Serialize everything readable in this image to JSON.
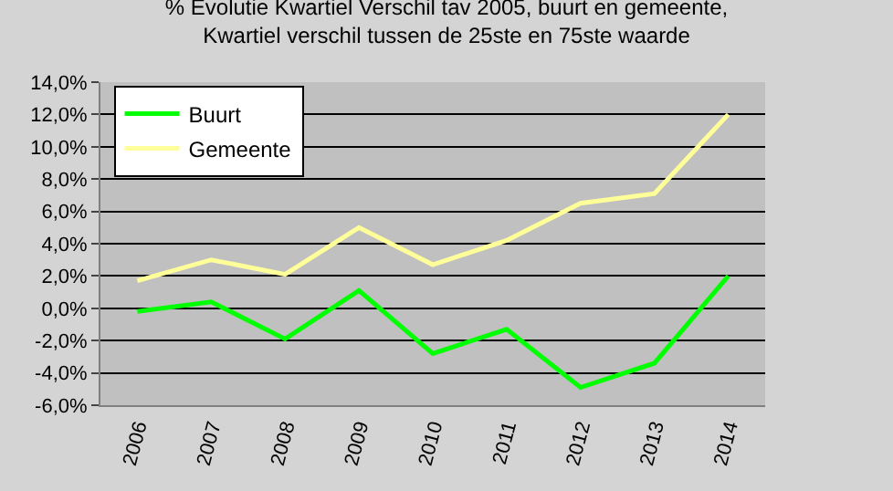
{
  "chart_data": {
    "type": "line",
    "title": "% Evolutie Kwartiel Verschil tav 2005, buurt en gemeente,\nKwartiel verschil tussen de 25ste en 75ste waarde",
    "categories": [
      "2006",
      "2007",
      "2008",
      "2009",
      "2010",
      "2011",
      "2012",
      "2013",
      "2014"
    ],
    "series": [
      {
        "name": "Buurt",
        "color": "#00ff00",
        "values": [
          -0.2,
          0.4,
          -1.9,
          1.1,
          -2.8,
          -1.3,
          -4.9,
          -3.4,
          2.0
        ]
      },
      {
        "name": "Gemeente",
        "color": "#ffff99",
        "values": [
          1.7,
          3.0,
          2.1,
          5.0,
          2.7,
          4.2,
          6.5,
          7.1,
          12.0
        ]
      }
    ],
    "ylim": [
      -6,
      14
    ],
    "yticks": [
      {
        "value": -6,
        "label": "-6,0%"
      },
      {
        "value": -4,
        "label": "-4,0%"
      },
      {
        "value": -2,
        "label": "-2,0%"
      },
      {
        "value": 0,
        "label": "0,0%"
      },
      {
        "value": 2,
        "label": "2,0%"
      },
      {
        "value": 4,
        "label": "4,0%"
      },
      {
        "value": 6,
        "label": "6,0%"
      },
      {
        "value": 8,
        "label": "8,0%"
      },
      {
        "value": 10,
        "label": "10,0%"
      },
      {
        "value": 12,
        "label": "12,0%"
      },
      {
        "value": 14,
        "label": "14,0%"
      }
    ],
    "grid": "y",
    "legend": "top left",
    "marker": "none",
    "line_style": "solid"
  }
}
